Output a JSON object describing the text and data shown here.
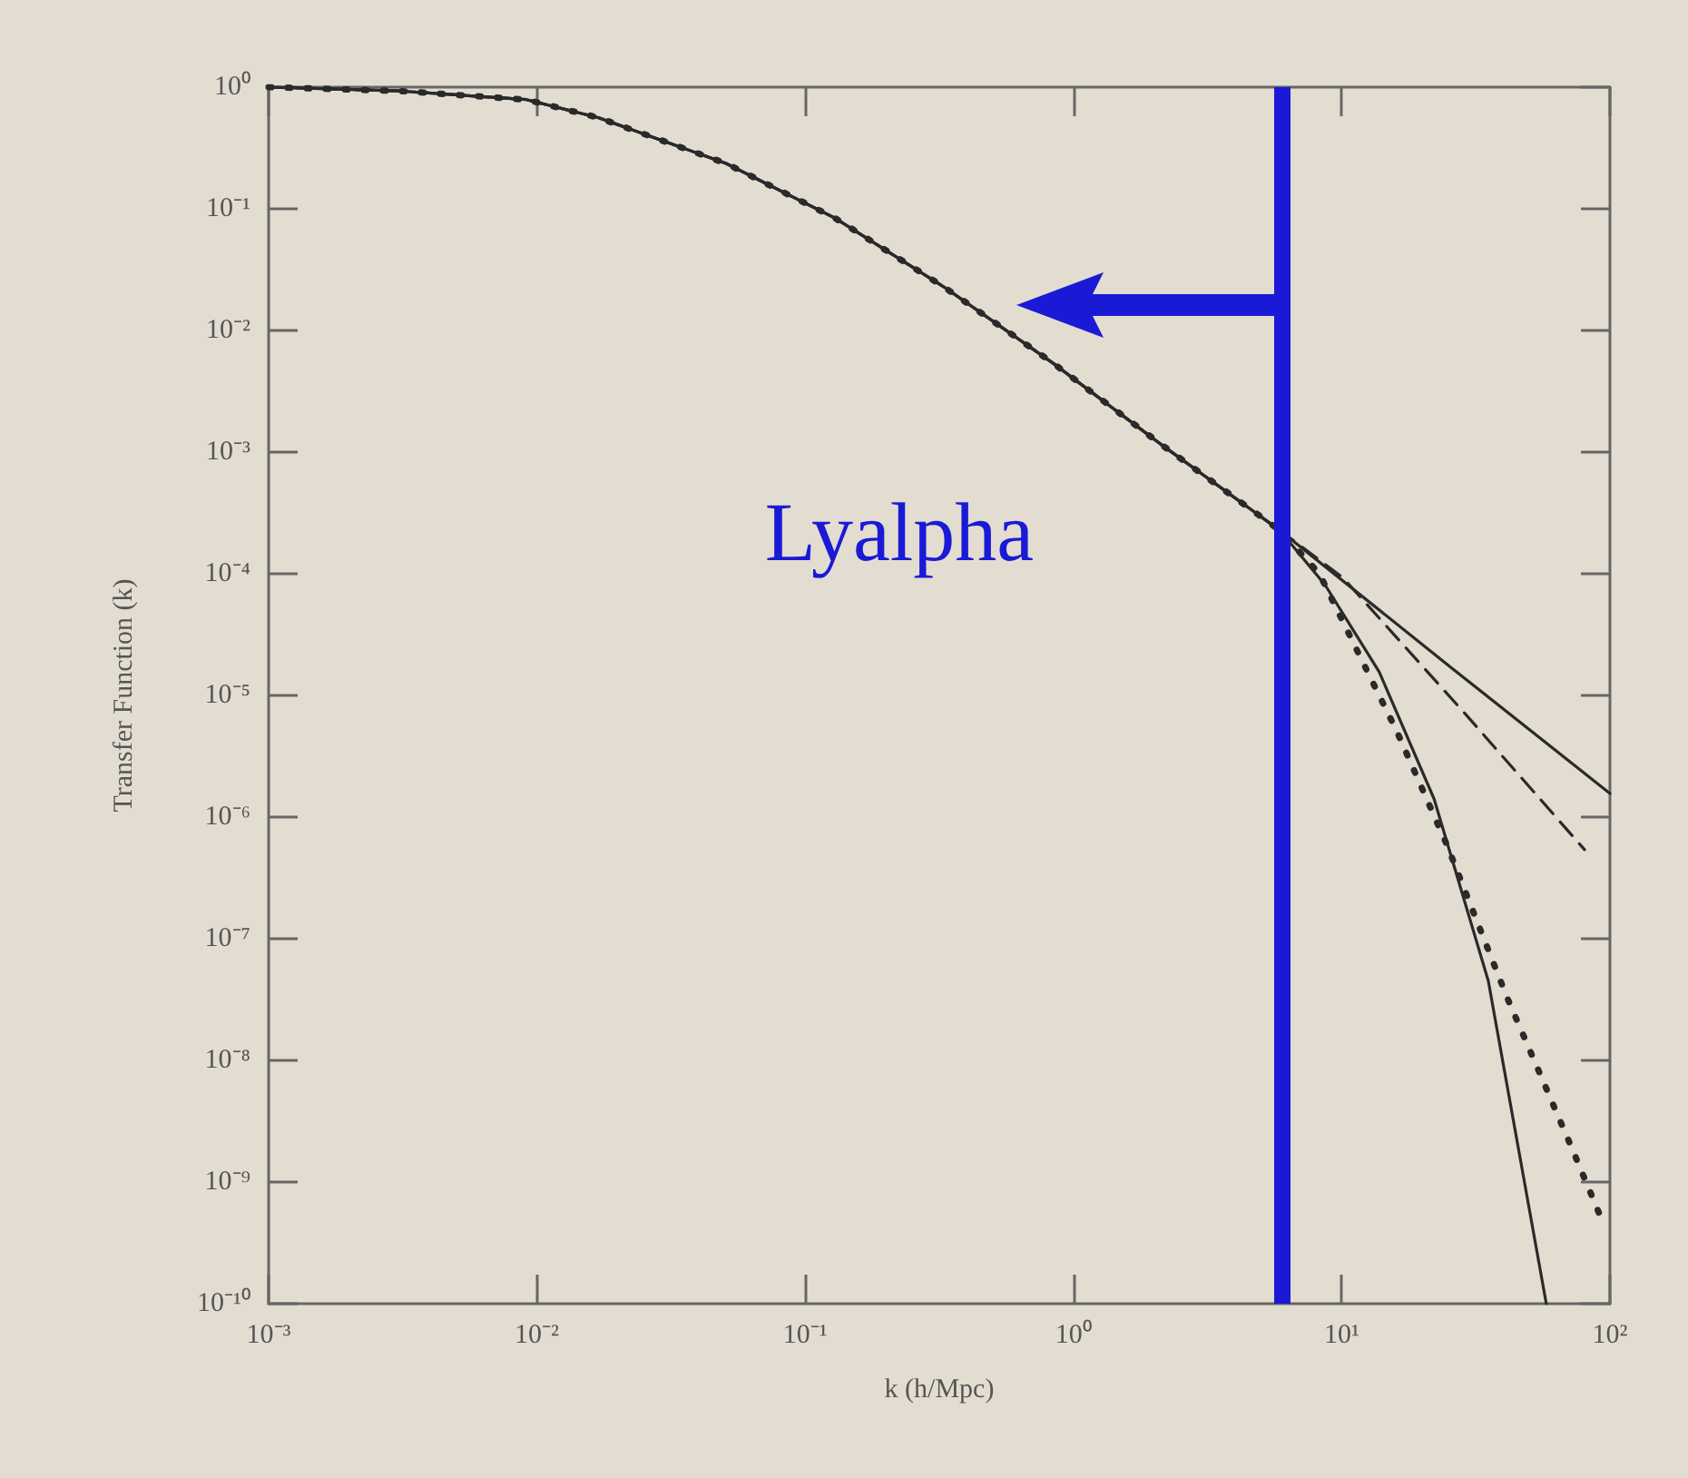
{
  "chart_data": {
    "type": "line",
    "xlabel": "k (h/Mpc)",
    "ylabel": "Transfer Function (k)",
    "log": "xy",
    "grid": false,
    "marker": "none",
    "xlim": [
      0.001,
      100
    ],
    "ylim": [
      1e-10,
      1
    ],
    "xticks": [
      {
        "value": 0.001,
        "label": "10⁻³"
      },
      {
        "value": 0.01,
        "label": "10⁻²"
      },
      {
        "value": 0.1,
        "label": "10⁻¹"
      },
      {
        "value": 1,
        "label": "10⁰"
      },
      {
        "value": 10,
        "label": "10¹"
      },
      {
        "value": 100,
        "label": "10²"
      }
    ],
    "yticks": [
      {
        "value": 1,
        "label": "10⁰"
      },
      {
        "value": 0.1,
        "label": "10⁻¹"
      },
      {
        "value": 0.01,
        "label": "10⁻²"
      },
      {
        "value": 0.001,
        "label": "10⁻³"
      },
      {
        "value": 0.0001,
        "label": "10⁻⁴"
      },
      {
        "value": 1e-05,
        "label": "10⁻⁵"
      },
      {
        "value": 1e-06,
        "label": "10⁻⁶"
      },
      {
        "value": 1e-07,
        "label": "10⁻⁷"
      },
      {
        "value": 1e-08,
        "label": "10⁻⁸"
      },
      {
        "value": 1e-09,
        "label": "10⁻⁹"
      },
      {
        "value": 1e-10,
        "label": "10⁻¹⁰"
      }
    ],
    "series": [
      {
        "color": "#2a2a2a",
        "line_style": "solid",
        "x": [
          0.001,
          0.00307,
          0.00914,
          0.017,
          0.0507,
          0.129,
          0.329,
          0.838,
          2.13,
          5.87,
          25.8,
          100
        ],
        "values": [
          1,
          0.93,
          0.79,
          0.56,
          0.236,
          0.084,
          0.0228,
          0.0054,
          0.00115,
          0.000228,
          1.67e-05,
          1.56e-06
        ]
      },
      {
        "color": "#2a2a2a",
        "line_style": "dashed",
        "x": [
          0.001,
          0.00307,
          0.00914,
          0.017,
          0.0507,
          0.129,
          0.329,
          0.838,
          2.13,
          5.87,
          10.1,
          28.8,
          80.4
        ],
        "values": [
          1,
          0.93,
          0.79,
          0.56,
          0.236,
          0.084,
          0.0228,
          0.0054,
          0.00115,
          0.000228,
          9.3e-05,
          7.1e-06,
          5.4e-07
        ]
      },
      {
        "color": "#2a2a2a",
        "line_style": "dotted",
        "x": [
          0.001,
          0.00307,
          0.00914,
          0.017,
          0.0507,
          0.129,
          0.329,
          0.838,
          2.13,
          5.87,
          8.26,
          16.1,
          24.6,
          41.1,
          71,
          94
        ],
        "values": [
          1,
          0.93,
          0.79,
          0.56,
          0.236,
          0.084,
          0.0228,
          0.0054,
          0.00115,
          0.000228,
          0.0001,
          5e-06,
          6e-07,
          3.4e-08,
          2.06e-09,
          4.7e-10
        ]
      },
      {
        "color": "#2a2a2a",
        "line_style": "solid",
        "x": [
          0.001,
          0.00307,
          0.00914,
          0.017,
          0.0507,
          0.129,
          0.329,
          0.838,
          2.13,
          5.87,
          8.67,
          13.8,
          22.1,
          35.2,
          57.9
        ],
        "values": [
          1,
          0.93,
          0.79,
          0.56,
          0.236,
          0.084,
          0.0228,
          0.0054,
          0.00115,
          0.000228,
          8.1e-05,
          1.56e-05,
          1.41e-06,
          4.5e-08,
          1e-10
        ]
      }
    ],
    "ref_lines": [
      {
        "axis": "x",
        "value": 6,
        "label": "Lyalpha",
        "color": "#1a1ad6",
        "line_style": "solid"
      }
    ]
  }
}
